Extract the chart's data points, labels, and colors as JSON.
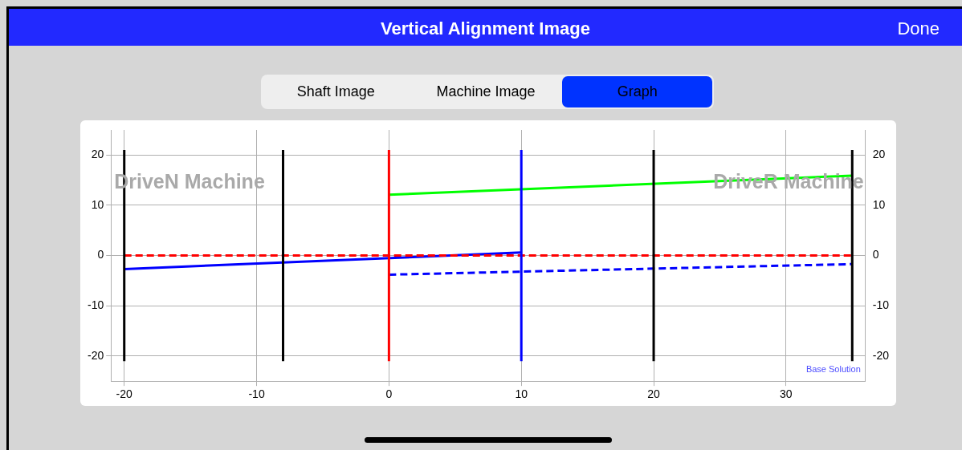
{
  "chart_data": {
    "type": "line",
    "title": "Vertical Alignment Image",
    "annotations": [
      "Done",
      "Shaft Image",
      "Machine Image",
      "Graph",
      "DriveN Machine",
      "DriveR Machine",
      "Base Solution"
    ],
    "xlim": [
      -21,
      36
    ],
    "xticks": [
      -20,
      -10,
      0,
      10,
      20,
      30
    ],
    "ylim": [
      -25,
      25
    ],
    "yticks": [
      -20,
      -10,
      0,
      10,
      20
    ],
    "y2lim": [
      -25,
      25
    ],
    "y2ticks": [
      -20,
      -10,
      0,
      10,
      20
    ],
    "grid": true,
    "legend": false,
    "marker": "none",
    "series": [
      {
        "color": "#000000",
        "x": [
          -20,
          -20
        ],
        "values": [
          -21,
          21
        ]
      },
      {
        "color": "#000000",
        "x": [
          -8,
          -8
        ],
        "values": [
          -21,
          21
        ]
      },
      {
        "color": "#000000",
        "x": [
          20,
          20
        ],
        "values": [
          -21,
          21
        ]
      },
      {
        "color": "#000000",
        "x": [
          35,
          35
        ],
        "values": [
          -21,
          21
        ]
      },
      {
        "color": "#ff0000",
        "x": [
          0,
          0
        ],
        "values": [
          -21,
          21
        ]
      },
      {
        "color": "#0000ff",
        "x": [
          10,
          10
        ],
        "values": [
          -21,
          21
        ]
      },
      {
        "color": "#00ff00",
        "x": [
          0,
          35
        ],
        "values": [
          12.1,
          15.9
        ]
      },
      {
        "color": "#ff0000",
        "x": [
          -20,
          35
        ],
        "values": [
          0,
          0
        ],
        "line_style": "dashed"
      },
      {
        "color": "#0000ff",
        "x": [
          -20,
          10
        ],
        "values": [
          -2.7,
          0.6
        ]
      },
      {
        "color": "#0000ff",
        "x": [
          0,
          35
        ],
        "values": [
          -3.8,
          -1.7
        ],
        "line_style": "dashed"
      }
    ]
  }
}
